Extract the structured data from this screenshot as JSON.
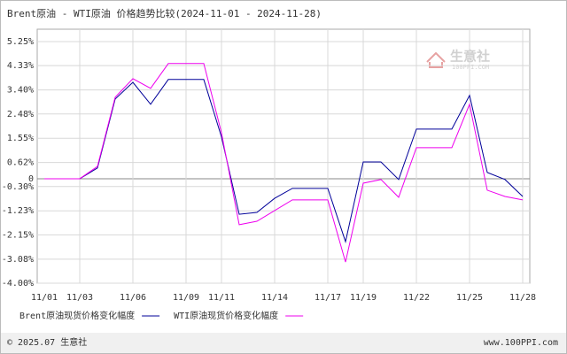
{
  "chart_data": {
    "type": "line",
    "title": "Brent原油 - WTI原油 价格趋势比较(2024-11-01 - 2024-11-28)",
    "categories": [
      "11/01",
      null,
      "11/03",
      null,
      null,
      "11/06",
      null,
      null,
      "11/09",
      null,
      "11/11",
      null,
      null,
      "11/14",
      null,
      null,
      "11/17",
      null,
      "11/19",
      null,
      null,
      "11/22",
      null,
      null,
      "11/25",
      null,
      null,
      "11/28"
    ],
    "series": [
      {
        "name": "Brent原油现货价格变化幅度",
        "color": "#000099",
        "values": [
          0,
          0,
          0,
          0.41,
          3.05,
          3.69,
          2.85,
          3.8,
          3.8,
          3.8,
          1.6,
          -1.36,
          -1.29,
          -0.75,
          -0.37,
          -0.37,
          -0.37,
          -2.41,
          0.64,
          0.64,
          -0.03,
          1.9,
          1.9,
          1.9,
          3.19,
          0.24,
          -0.03,
          -0.68
        ]
      },
      {
        "name": "WTI原油现货价格变化幅度",
        "color": "#ee00ee",
        "values": [
          0,
          0,
          0,
          0.47,
          3.12,
          3.83,
          3.46,
          4.41,
          4.41,
          4.41,
          1.76,
          -1.76,
          -1.63,
          -1.22,
          -0.81,
          -0.81,
          -0.81,
          -3.19,
          -0.17,
          -0.03,
          -0.71,
          1.19,
          1.19,
          1.19,
          2.85,
          -0.44,
          -0.68,
          -0.81
        ]
      }
    ],
    "ylim": [
      -4.0,
      5.25
    ],
    "yticks": [
      {
        "value": 5.25,
        "label": "5.25%"
      },
      {
        "value": 4.33,
        "label": "4.33%"
      },
      {
        "value": 3.4,
        "label": "3.40%"
      },
      {
        "value": 2.48,
        "label": "2.48%"
      },
      {
        "value": 1.55,
        "label": "1.55%"
      },
      {
        "value": 0.62,
        "label": "0.62%"
      },
      0,
      {
        "value": -0.3,
        "label": "-0.30%"
      },
      {
        "value": -1.23,
        "label": "-1.23%"
      },
      {
        "value": -2.15,
        "label": "-2.15%"
      },
      {
        "value": -3.08,
        "label": "-3.08%"
      },
      {
        "value": -4.0,
        "label": "-4.00%"
      }
    ],
    "grid": true
  },
  "watermark": {
    "name": "生意社",
    "site": "100PPI.COM"
  },
  "footer": {
    "copyright": "© 2025.07 生意社",
    "url": "www.100PPI.com"
  }
}
